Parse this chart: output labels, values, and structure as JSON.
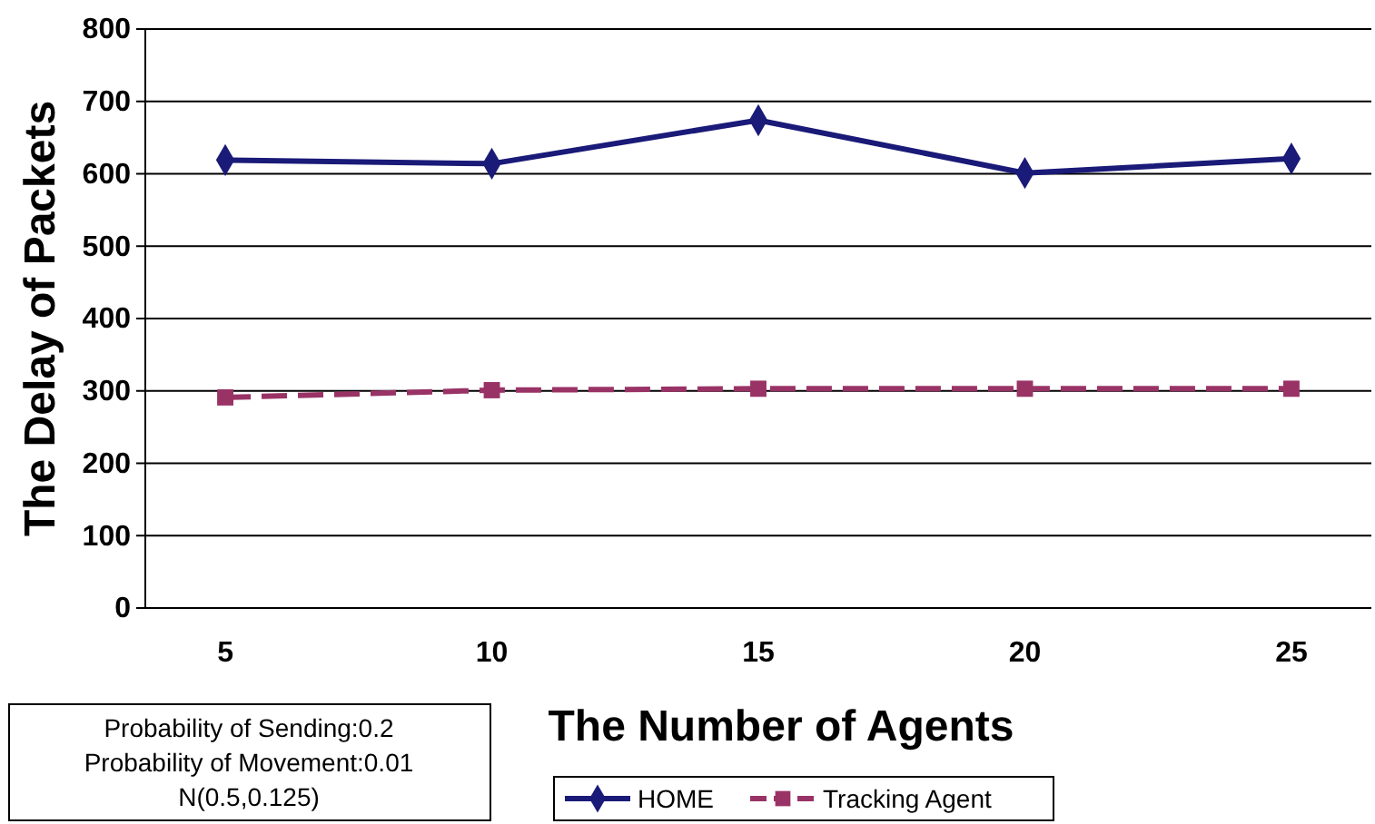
{
  "chart_data": {
    "type": "line",
    "xlabel": "The Number of Agents",
    "ylabel": "The Delay of Packets",
    "categories": [
      "5",
      "10",
      "15",
      "20",
      "25"
    ],
    "series": [
      {
        "name": "HOME",
        "color": "#1a1a78",
        "marker": "diamond",
        "line_style": "solid",
        "values": [
          619,
          614,
          674,
          601,
          621
        ]
      },
      {
        "name": "Tracking Agent",
        "color": "#993366",
        "marker": "square",
        "line_style": "dashed",
        "values": [
          291,
          301,
          303,
          303,
          303
        ]
      }
    ],
    "ylim": [
      0,
      800
    ],
    "yticks": [
      0,
      100,
      200,
      300,
      400,
      500,
      600,
      700,
      800
    ],
    "grid": "y",
    "legend": "bottom",
    "annotations": [
      "Probability of Sending:0.2\nProbability of Movement:0.01\nN(0.5,0.125)"
    ]
  }
}
